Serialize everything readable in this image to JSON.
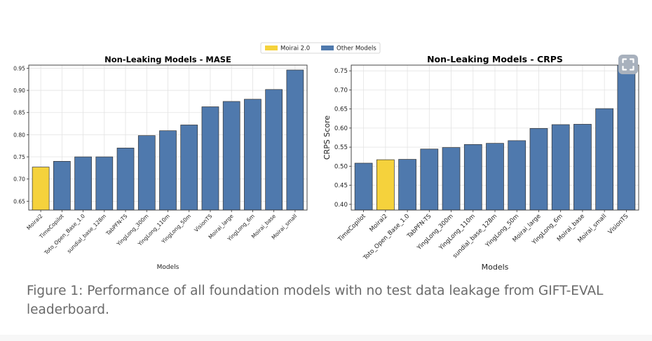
{
  "legend": {
    "entries": [
      {
        "label": "Moirai 2.0",
        "color": "#f5d23c"
      },
      {
        "label": "Other Models",
        "color": "#4f79ad"
      }
    ]
  },
  "chart_data": [
    {
      "type": "bar",
      "title": "Non-Leaking Models - MASE",
      "xlabel": "Models",
      "ylabel": "",
      "ylim": [
        0.63,
        0.957
      ],
      "yticks": [
        0.65,
        0.7,
        0.75,
        0.8,
        0.85,
        0.9,
        0.95
      ],
      "grid": true,
      "categories": [
        "Moirai2",
        "TimeCopilot",
        "Toto_Open_Base_1.0",
        "sundial_base_128m",
        "TabPFN-TS",
        "YingLong_300m",
        "YingLong_110m",
        "YingLong_50m",
        "VisionTS",
        "Moirai_large",
        "YingLong_6m",
        "Moirai_base",
        "Moirai_small"
      ],
      "values": [
        0.727,
        0.74,
        0.75,
        0.75,
        0.77,
        0.798,
        0.809,
        0.822,
        0.863,
        0.875,
        0.88,
        0.902,
        0.946
      ],
      "highlight": [
        "Moirai2"
      ]
    },
    {
      "type": "bar",
      "title": "Non-Leaking Models - CRPS",
      "xlabel": "Models",
      "ylabel": "CRPS Score",
      "ylim": [
        0.385,
        0.765
      ],
      "yticks": [
        0.4,
        0.45,
        0.5,
        0.55,
        0.6,
        0.65,
        0.7,
        0.75
      ],
      "grid": true,
      "categories": [
        "TimeCopilot",
        "Moirai2",
        "Toto_Open_Base_1.0",
        "TabPFN-TS",
        "YingLong_300m",
        "YingLong_110m",
        "sundial_base_128m",
        "YingLong_50m",
        "Moirai_large",
        "YingLong_6m",
        "Moirai_base",
        "Moirai_small",
        "VisionTS"
      ],
      "values": [
        0.508,
        0.517,
        0.518,
        0.545,
        0.549,
        0.557,
        0.56,
        0.567,
        0.599,
        0.609,
        0.61,
        0.651,
        0.78
      ],
      "highlight": [
        "Moirai2"
      ]
    }
  ],
  "colors": {
    "highlight": "#f5d23c",
    "other": "#4f79ad",
    "caption": "#6a6a6a"
  },
  "caption": "Figure 1: Performance of all foundation models with no test data leakage from GIFT-EVAL leaderboard.",
  "icons": {
    "expand": "expand-icon"
  }
}
